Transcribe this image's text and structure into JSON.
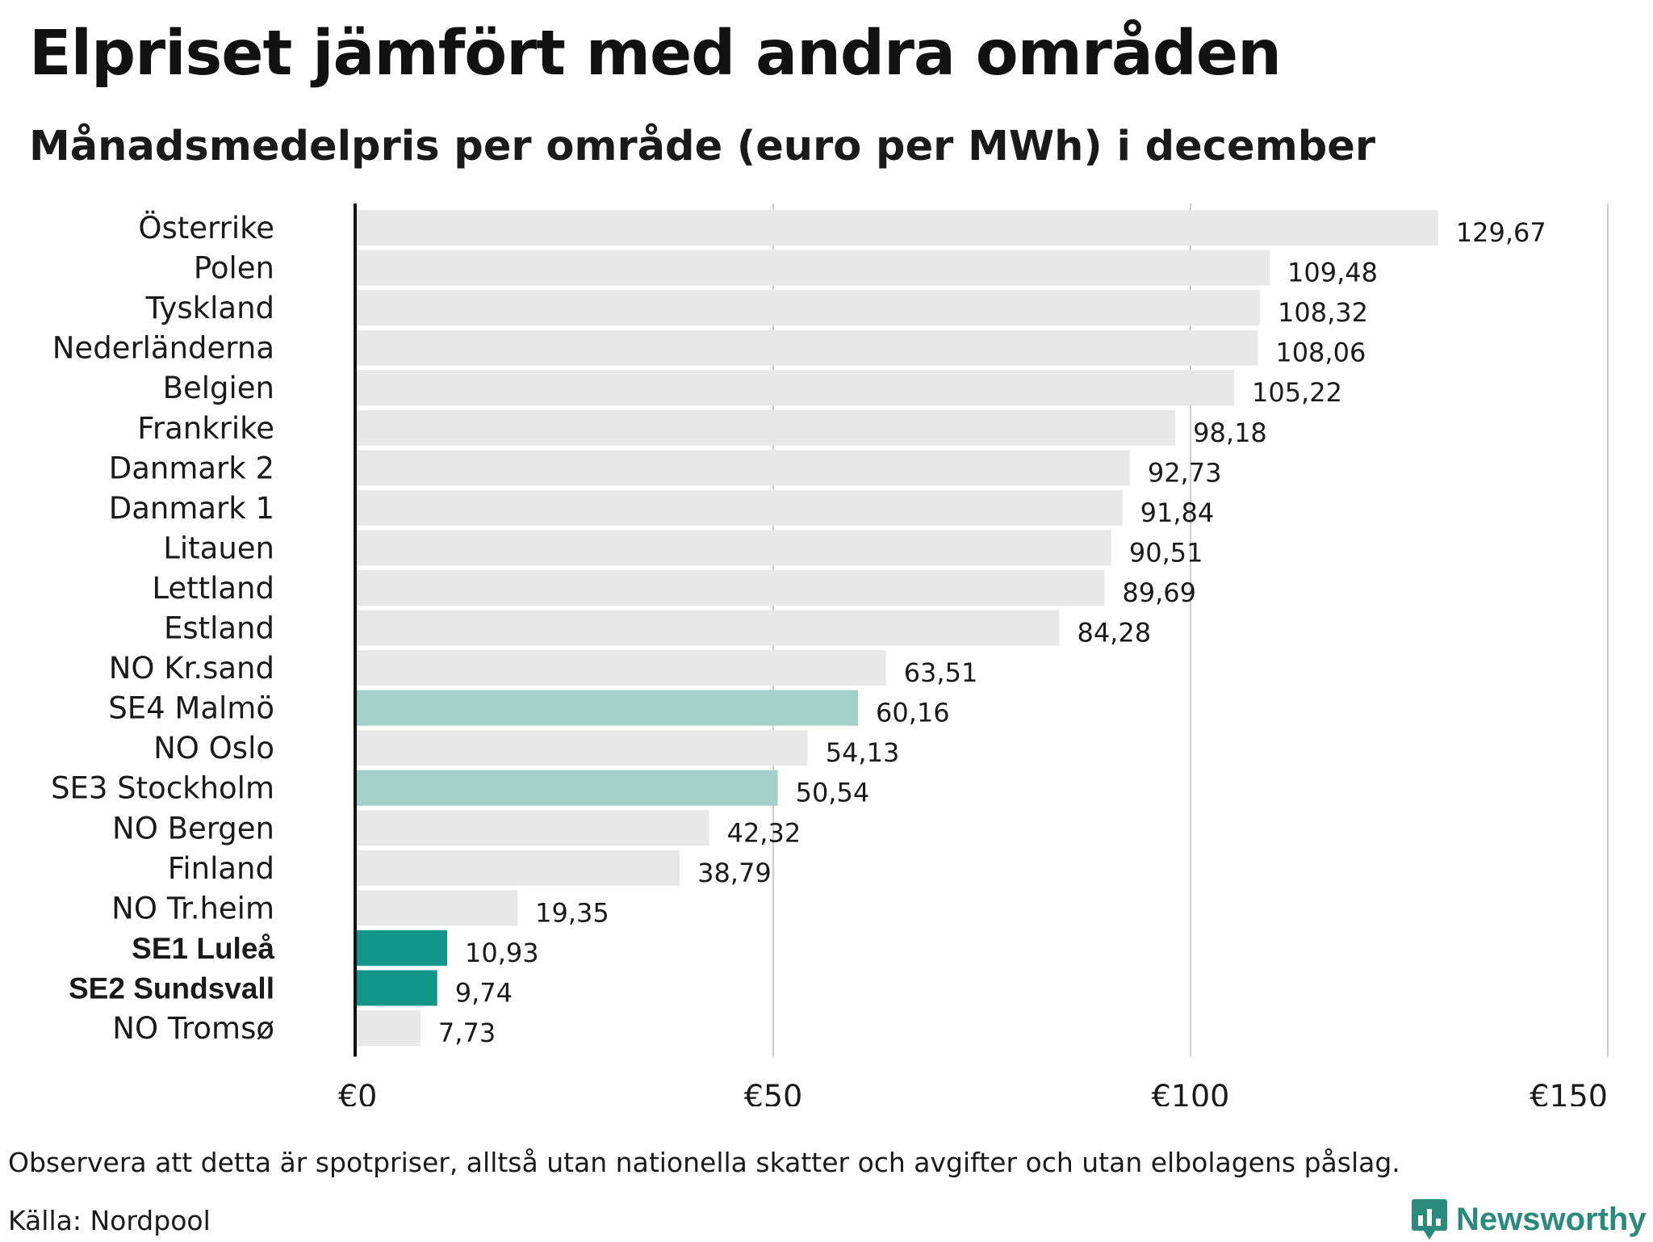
{
  "title": "Elpriset jämfört med andra områden",
  "subtitle": "Månadsmedelpris per område (euro per MWh) i december",
  "note": "Observera att detta är spotpriser, alltså utan nationella skatter och avgifter och utan elbolagens påslag.",
  "source": "Källa: Nordpool",
  "brand": "Newsworthy",
  "logo_icon": "bar-chart-speech-bubble-icon",
  "colors": {
    "default_bar": "#e8e8e8",
    "light_highlight": "#a5cfc9",
    "strong_highlight": "#13968a",
    "axis": "#111111",
    "grid": "#c8ccd4",
    "brand": "#2a8a7c"
  },
  "chart_data": {
    "type": "bar",
    "orientation": "horizontal",
    "title": "Elpriset jämfört med andra områden",
    "subtitle": "Månadsmedelpris per område (euro per MWh) i december",
    "categories": [
      "Österrike",
      "Polen",
      "Tyskland",
      "Nederländerna",
      "Belgien",
      "Frankrike",
      "Danmark  2",
      "Danmark  1",
      "Litauen",
      "Lettland",
      "Estland",
      "NO Kr.sand",
      "SE4  Malmö",
      "NO Oslo",
      "SE3  Stockholm",
      "NO Bergen",
      "Finland",
      "NO Tr.heim",
      "SE1 Luleå",
      "SE2 Sundsvall",
      "NO Tromsø"
    ],
    "values": [
      129.67,
      109.48,
      108.32,
      108.06,
      105.22,
      98.18,
      92.73,
      91.84,
      90.51,
      89.69,
      84.28,
      63.51,
      60.16,
      54.13,
      50.54,
      42.32,
      38.79,
      19.35,
      10.93,
      9.74,
      7.73
    ],
    "value_labels": [
      "129,67",
      "109,48",
      "108,32",
      "108,06",
      "105,22",
      "98,18",
      "92,73",
      "91,84",
      "90,51",
      "89,69",
      "84,28",
      "63,51",
      "60,16",
      "54,13",
      "50,54",
      "42,32",
      "38,79",
      "19,35",
      "10,93",
      "9,74",
      "7,73"
    ],
    "highlight": [
      "none",
      "none",
      "none",
      "none",
      "none",
      "none",
      "none",
      "none",
      "none",
      "none",
      "none",
      "none",
      "light",
      "none",
      "light",
      "none",
      "none",
      "none",
      "strong",
      "strong",
      "none"
    ],
    "bold_labels": [
      false,
      false,
      false,
      false,
      false,
      false,
      false,
      false,
      false,
      false,
      false,
      false,
      false,
      false,
      false,
      false,
      false,
      false,
      true,
      true,
      false
    ],
    "x_ticks": [
      0,
      50,
      100,
      150
    ],
    "x_tick_labels": [
      "€0",
      "€50",
      "€100",
      "€150"
    ],
    "xlim": [
      0,
      150
    ],
    "grid": true,
    "legend": false
  }
}
